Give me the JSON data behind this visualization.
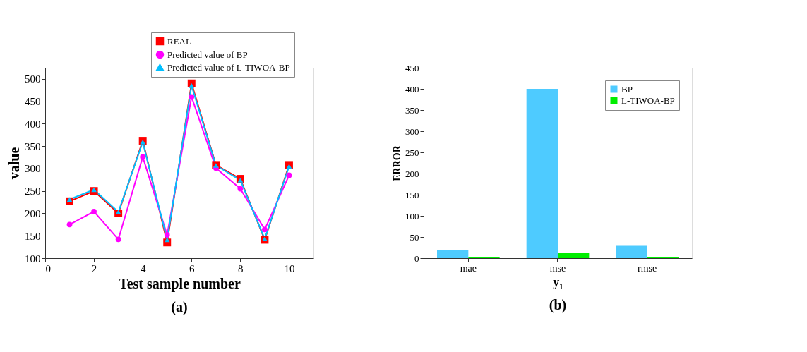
{
  "chart_data": [
    {
      "type": "line",
      "xlabel": "Test sample number",
      "ylabel": "value",
      "annotations": [
        "(a)"
      ],
      "x": [
        1,
        2,
        3,
        4,
        5,
        6,
        7,
        8,
        9,
        10
      ],
      "series": [
        {
          "name": "REAL",
          "color": "#ff0000",
          "marker": "square",
          "values": [
            227,
            250,
            200,
            362,
            135,
            490,
            308,
            277,
            141,
            308
          ]
        },
        {
          "name": "Predicted value of BP",
          "color": "#ff00ff",
          "marker": "circle",
          "values": [
            175,
            204,
            142,
            326,
            152,
            460,
            301,
            255,
            164,
            285
          ]
        },
        {
          "name": "Predicted value of L-TIWOA-BP",
          "color": "#00bfff",
          "marker": "triangle",
          "values": [
            231,
            253,
            203,
            359,
            141,
            485,
            307,
            274,
            143,
            305
          ]
        }
      ],
      "xlim": [
        0,
        11
      ],
      "xticks": [
        0,
        2,
        4,
        6,
        8,
        10
      ],
      "ylim": [
        100,
        525
      ],
      "yticks": [
        100,
        150,
        200,
        250,
        300,
        350,
        400,
        450,
        500
      ],
      "legend": "top right",
      "grid": false
    },
    {
      "type": "bar",
      "xlabel": "y₁",
      "ylabel": "ERROR",
      "annotations": [
        "(b)"
      ],
      "categories": [
        "mae",
        "mse",
        "rmse"
      ],
      "series": [
        {
          "name": "BP",
          "color": "#4ecbff",
          "values": [
            20,
            400,
            29
          ]
        },
        {
          "name": "L-TIWOA-BP",
          "color": "#00ee00",
          "values": [
            3,
            12,
            3
          ]
        }
      ],
      "ylim": [
        0,
        450
      ],
      "yticks": [
        0,
        50,
        100,
        150,
        200,
        250,
        300,
        350,
        400,
        450
      ],
      "legend": "top right",
      "grid": false
    }
  ]
}
